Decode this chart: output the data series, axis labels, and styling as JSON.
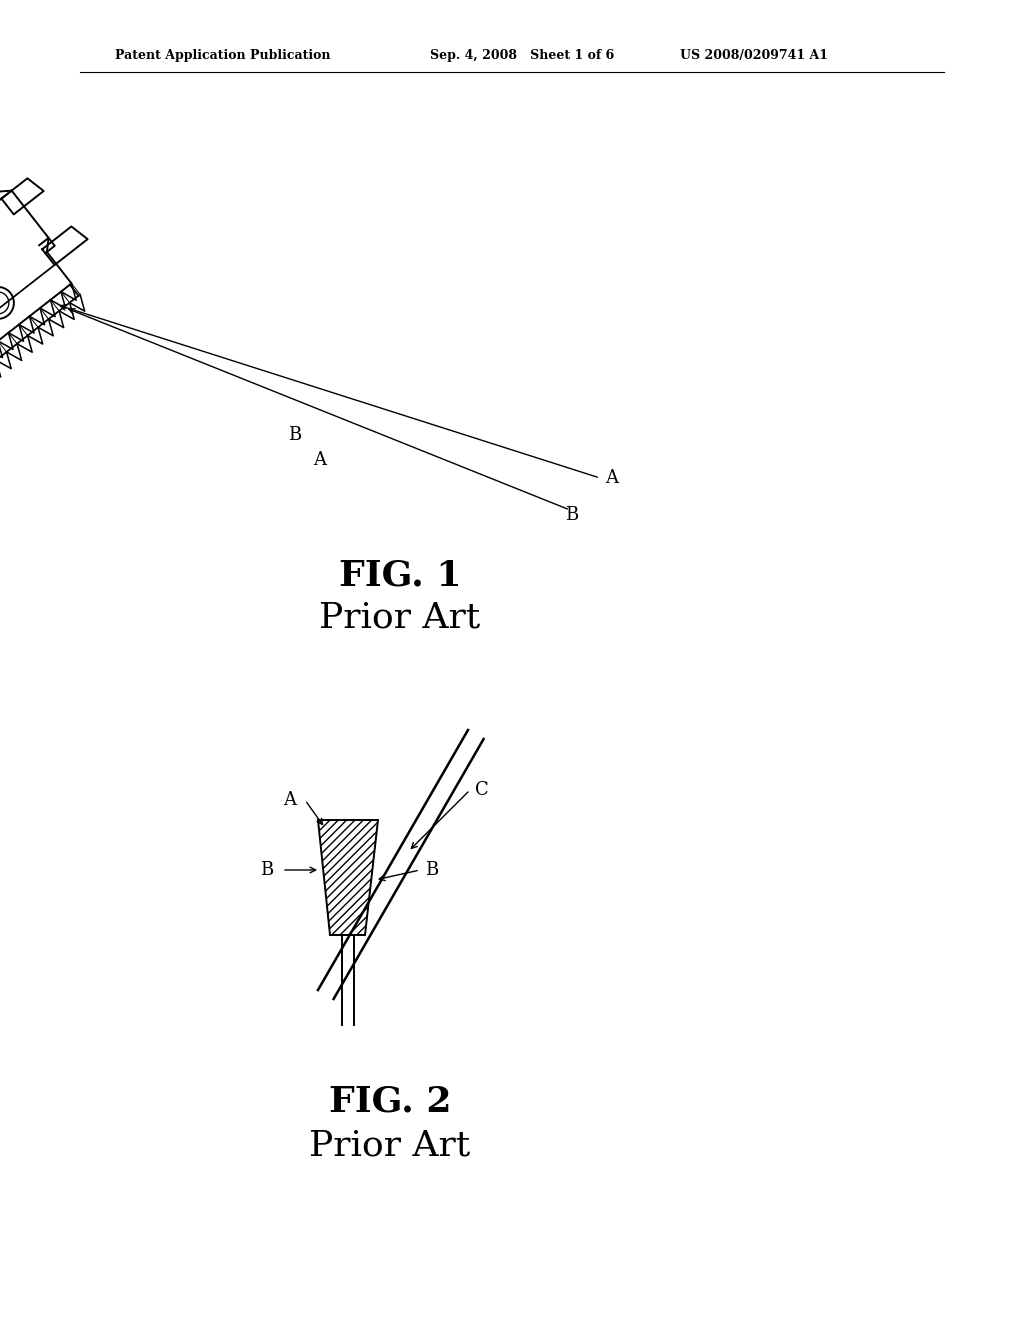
{
  "bg_color": "#ffffff",
  "line_color": "#000000",
  "header_left": "Patent Application Publication",
  "header_mid": "Sep. 4, 2008   Sheet 1 of 6",
  "header_right": "US 2008/0209741 A1",
  "fig1_caption": "FIG. 1",
  "fig1_sub": "Prior Art",
  "fig2_caption": "FIG. 2",
  "fig2_sub": "Prior Art",
  "font_family": "DejaVu Serif"
}
